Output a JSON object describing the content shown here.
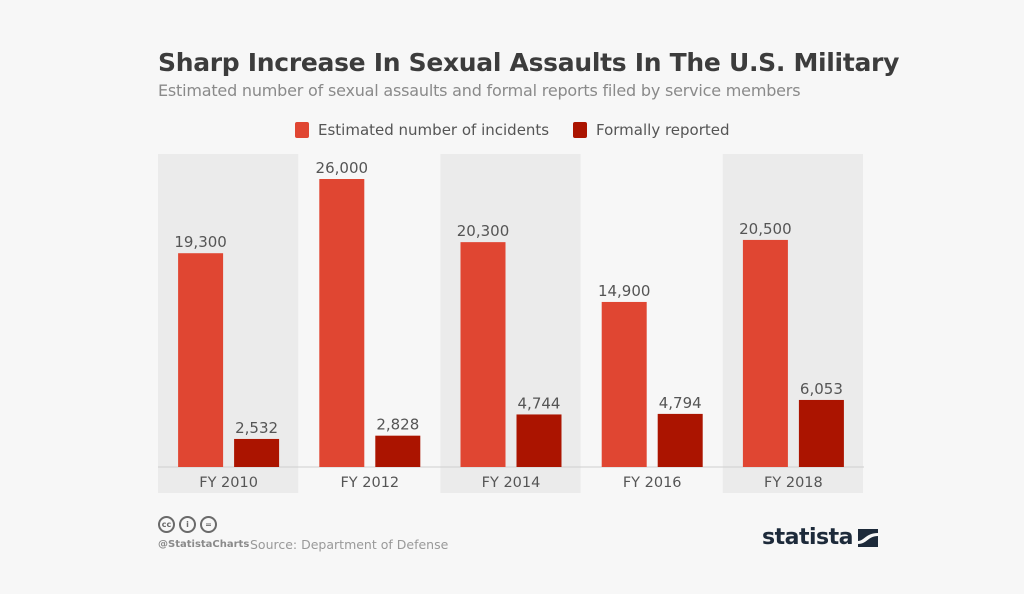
{
  "chart_data": {
    "type": "bar",
    "title": "Sharp Increase In Sexual Assaults In The U.S. Military",
    "subtitle": "Estimated number of sexual assaults and formal reports filed by service members",
    "categories": [
      "FY 2010",
      "FY 2012",
      "FY 2014",
      "FY 2016",
      "FY 2018"
    ],
    "series": [
      {
        "name": "Estimated number of incidents",
        "color": "#e04632",
        "values": [
          19300,
          26000,
          20300,
          14900,
          20500
        ],
        "labels": [
          "19,300",
          "26,000",
          "20,300",
          "14,900",
          "20,500"
        ]
      },
      {
        "name": "Formally reported",
        "color": "#ab1400",
        "values": [
          2532,
          2828,
          4744,
          4794,
          6053
        ],
        "labels": [
          "2,532",
          "2,828",
          "4,744",
          "4,794",
          "6,053"
        ]
      }
    ],
    "xlabel": "",
    "ylabel": "",
    "ylim": [
      0,
      26000
    ],
    "grid": false,
    "legend_position": "top-center",
    "band_colors": [
      "#ebebeb",
      "#f7f7f7"
    ]
  },
  "footer": {
    "handle": "@StatistaCharts",
    "source": "Source: Department of Defense",
    "license_icons": [
      "cc-icon",
      "attribution-icon",
      "no-derivatives-icon"
    ],
    "cc_labels": [
      "cc",
      "i",
      "="
    ],
    "logo": "statista"
  }
}
